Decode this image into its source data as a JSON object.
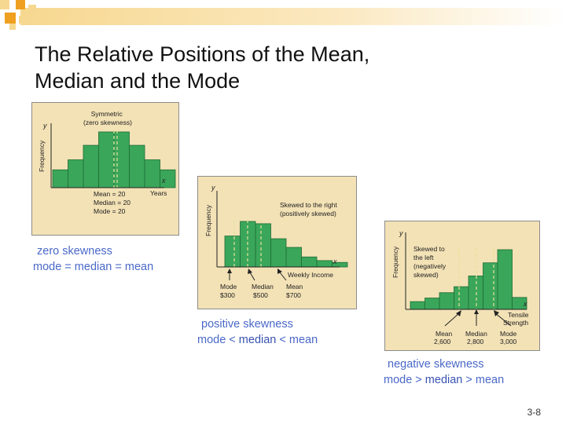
{
  "slide": {
    "title": "The Relative Positions of the Mean,\nMedian and the Mode",
    "page_number": "3-8"
  },
  "colors": {
    "bar_fill": "#3aa65a",
    "bar_stroke": "#1e6b35",
    "panel_bg": "#f3e2b6",
    "dash": "#e6e29a",
    "caption_blue": "#4a68c8",
    "deco_orange": "#f0a020",
    "deco_yellow": "#f7d890"
  },
  "panels": {
    "symmetric": {
      "bars": [
        0.32,
        0.5,
        0.76,
        1.0,
        1.0,
        0.76,
        0.5,
        0.32
      ],
      "y_axis": "y",
      "x_axis": "x",
      "frequency": "Frequency",
      "label": [
        "Symmetric",
        "(zero skewness)"
      ],
      "x_label": "Years",
      "stats": [
        "Mean = 20",
        "Median = 20",
        "Mode = 20"
      ],
      "caption1": "zero skewness",
      "caption2": "mode = median = mean"
    },
    "positive": {
      "bars": [
        0.68,
        1.0,
        0.95,
        0.62,
        0.43,
        0.22,
        0.14,
        0.1
      ],
      "y_axis": "y",
      "x_axis": "x",
      "frequency": "Frequency",
      "label": [
        "Skewed to the right",
        "(positively skewed)"
      ],
      "x_label": "Weekly Income",
      "stats": [
        {
          "name": "Mode",
          "value": "$300"
        },
        {
          "name": "Median",
          "value": "$500"
        },
        {
          "name": "Mean",
          "value": "$700"
        }
      ],
      "caption1": "positive skewness",
      "caption2_a": "mode < ",
      "caption2_b": "median",
      "caption2_c": " < mean"
    },
    "negative": {
      "bars": [
        0.13,
        0.19,
        0.28,
        0.38,
        0.56,
        0.78,
        1.0,
        0.2
      ],
      "y_axis": "y",
      "x_axis": "x",
      "frequency": "Frequency",
      "label": [
        "Skewed to",
        "the left",
        "(negatively",
        "skewed)"
      ],
      "x_label": [
        "Tensile",
        "Strength"
      ],
      "stats": [
        {
          "name": "Mean",
          "value": "2,600"
        },
        {
          "name": "Median",
          "value": "2,800"
        },
        {
          "name": "Mode",
          "value": "3,000"
        }
      ],
      "caption1": "negative skewness",
      "caption2_a": "mode > ",
      "caption2_b": "median",
      "caption2_c": " > mean"
    }
  }
}
